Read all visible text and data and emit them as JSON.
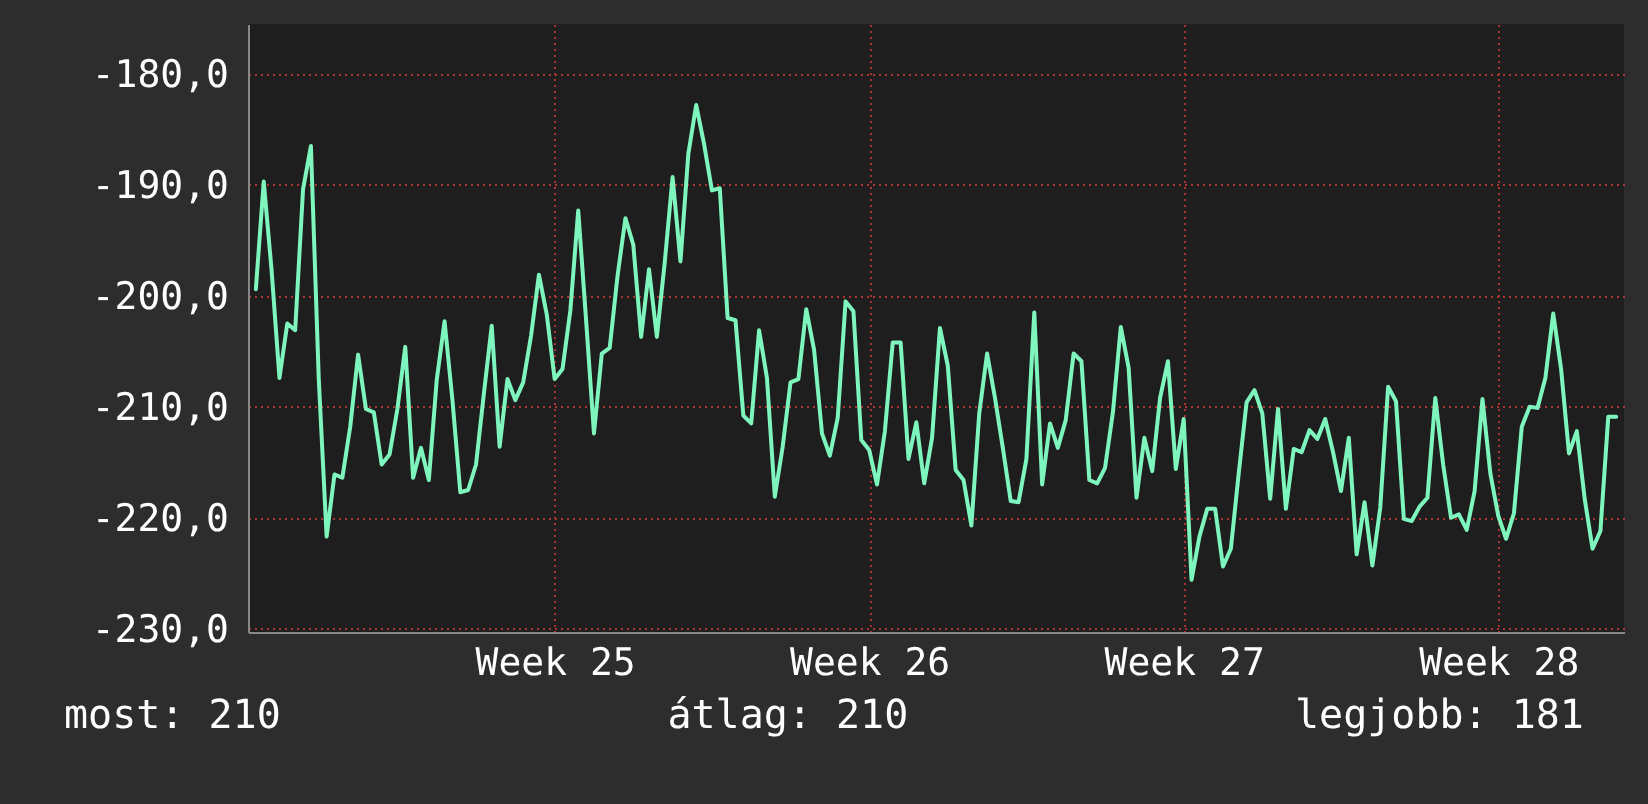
{
  "chart_data": {
    "type": "line",
    "ylim": [
      -230.3,
      -175.5
    ],
    "categories": [
      null,
      null,
      null,
      null,
      null,
      null,
      null,
      null,
      null,
      null,
      null,
      null,
      null,
      null,
      null,
      null,
      null,
      null,
      null,
      null,
      null,
      null,
      null,
      null,
      null,
      null,
      null,
      null,
      null,
      null,
      null,
      null,
      null,
      null,
      null,
      null,
      null,
      null,
      "Week 25",
      null,
      null,
      null,
      null,
      null,
      null,
      null,
      null,
      null,
      null,
      null,
      null,
      null,
      null,
      null,
      null,
      null,
      null,
      null,
      null,
      null,
      null,
      null,
      null,
      null,
      null,
      null,
      null,
      null,
      null,
      null,
      null,
      null,
      null,
      null,
      null,
      null,
      null,
      null,
      "Week 26",
      null,
      null,
      null,
      null,
      null,
      null,
      null,
      null,
      null,
      null,
      null,
      null,
      null,
      null,
      null,
      null,
      null,
      null,
      null,
      null,
      null,
      null,
      null,
      null,
      null,
      null,
      null,
      null,
      null,
      null,
      null,
      null,
      null,
      null,
      null,
      null,
      null,
      null,
      null,
      "Week 27",
      null,
      null,
      null,
      null,
      null,
      null,
      null,
      null,
      null,
      null,
      null,
      null,
      null,
      null,
      null,
      null,
      null,
      null,
      null,
      null,
      null,
      null,
      null,
      null,
      null,
      null,
      null,
      null,
      null,
      null,
      null,
      null,
      null,
      null,
      null,
      null,
      null,
      null,
      null,
      "Week 28",
      null,
      null,
      null,
      null,
      null,
      null,
      null,
      null,
      null,
      null,
      null,
      null,
      null,
      null,
      null
    ],
    "yticks": [
      {
        "value": -230,
        "label": "-230,0"
      },
      {
        "value": -220,
        "label": "-220,0"
      },
      {
        "value": -210,
        "label": "-210,0"
      },
      {
        "value": -200,
        "label": "-200,0"
      },
      {
        "value": -190,
        "label": "-190,0"
      },
      {
        "value": -180,
        "label": "-180,0"
      }
    ],
    "grid": true,
    "marker": "none",
    "line_style": "solid",
    "annotations": [
      "most: 210",
      "átlag: 210",
      "legjobb: 181"
    ],
    "series": [
      {
        "color": "#7df5bd",
        "values": [
          -199.4,
          -189.7,
          -197.7,
          -207.4,
          -202.5,
          -203.1,
          -190.4,
          -186.5,
          -207.5,
          -221.7,
          -216.1,
          -216.4,
          -211.8,
          -205.3,
          -210.2,
          -210.5,
          -215.2,
          -214.3,
          -210.2,
          -204.6,
          -216.4,
          -213.7,
          -216.6,
          -207.6,
          -202.3,
          -209.4,
          -217.7,
          -217.5,
          -215.2,
          -208.8,
          -202.7,
          -213.6,
          -207.5,
          -209.4,
          -207.8,
          -203.6,
          -198.1,
          -201.7,
          -207.5,
          -206.6,
          -201.3,
          -192.3,
          -202.2,
          -212.4,
          -205.2,
          -204.7,
          -198.2,
          -193.0,
          -195.4,
          -203.7,
          -197.6,
          -203.7,
          -197.0,
          -189.3,
          -196.9,
          -187.2,
          -182.8,
          -186.3,
          -190.5,
          -190.3,
          -202.0,
          -202.2,
          -210.8,
          -211.5,
          -203.1,
          -207.4,
          -218.1,
          -213.6,
          -207.8,
          -207.5,
          -201.2,
          -204.9,
          -212.4,
          -214.4,
          -211.0,
          -200.5,
          -201.4,
          -213.0,
          -213.9,
          -217.0,
          -212.2,
          -204.2,
          -204.2,
          -214.7,
          -211.4,
          -216.9,
          -212.8,
          -202.9,
          -206.3,
          -215.7,
          -216.6,
          -220.7,
          -210.6,
          -205.2,
          -209.2,
          -213.7,
          -218.5,
          -218.6,
          -214.7,
          -201.5,
          -217.0,
          -211.5,
          -213.7,
          -211.2,
          -205.2,
          -205.9,
          -216.6,
          -216.9,
          -215.5,
          -210.5,
          -202.8,
          -206.5,
          -218.2,
          -212.8,
          -215.8,
          -209.2,
          -205.9,
          -215.6,
          -211.1,
          -225.6,
          -221.7,
          -219.2,
          -219.2,
          -224.4,
          -222.8,
          -216.0,
          -209.6,
          -208.5,
          -210.6,
          -218.3,
          -210.2,
          -219.2,
          -213.8,
          -214.1,
          -212.1,
          -212.9,
          -211.1,
          -214.1,
          -217.6,
          -212.8,
          -223.3,
          -218.6,
          -224.3,
          -219.1,
          -208.2,
          -209.5,
          -220.1,
          -220.3,
          -219.0,
          -218.2,
          -209.2,
          -215.2,
          -220.0,
          -219.7,
          -221.1,
          -217.6,
          -209.3,
          -216.0,
          -219.8,
          -221.9,
          -219.6,
          -211.8,
          -210.0,
          -210.1,
          -207.4,
          -201.6,
          -206.6,
          -214.2,
          -212.2,
          -218.3,
          -222.8,
          -221.2,
          -210.9,
          -210.9
        ]
      }
    ]
  }
}
